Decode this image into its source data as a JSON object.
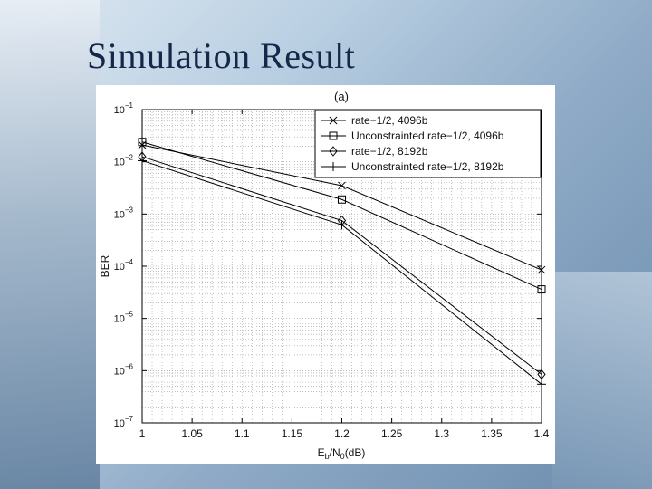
{
  "slide": {
    "title": "Simulation Result"
  },
  "chart_data": {
    "type": "line",
    "title": "(a)",
    "xlabel_main": "E",
    "xlabel_sub1": "b",
    "xlabel_mid": "/N",
    "xlabel_sub2": "0",
    "xlabel_unit": "(dB)",
    "ylabel": "BER",
    "x": [
      1.0,
      1.2,
      1.4
    ],
    "xlim": [
      1.0,
      1.4
    ],
    "xticks": [
      "1",
      "1.05",
      "1.1",
      "1.15",
      "1.2",
      "1.25",
      "1.3",
      "1.35",
      "1.4"
    ],
    "yscale": "log",
    "ylim": [
      1e-07,
      0.1
    ],
    "yticks": [
      {
        "base": "10",
        "exp": "−1"
      },
      {
        "base": "10",
        "exp": "−2"
      },
      {
        "base": "10",
        "exp": "−3"
      },
      {
        "base": "10",
        "exp": "−4"
      },
      {
        "base": "10",
        "exp": "−5"
      },
      {
        "base": "10",
        "exp": "−6"
      },
      {
        "base": "10",
        "exp": "−7"
      }
    ],
    "grid": true,
    "legend_position": "top-right",
    "series": [
      {
        "name": "rate−1/2, 4096b",
        "marker": "x",
        "values": [
          0.021,
          0.0035,
          8.5e-05
        ]
      },
      {
        "name": "Unconstrainted rate−1/2, 4096b",
        "marker": "square",
        "values": [
          0.024,
          0.0019,
          3.6e-05
        ]
      },
      {
        "name": "rate−1/2, 8192b",
        "marker": "diamond",
        "values": [
          0.0125,
          0.00075,
          8.5e-07
        ]
      },
      {
        "name": "Unconstrainted rate−1/2, 8192b",
        "marker": "plus",
        "values": [
          0.0105,
          0.00062,
          5.5e-07
        ]
      }
    ]
  }
}
